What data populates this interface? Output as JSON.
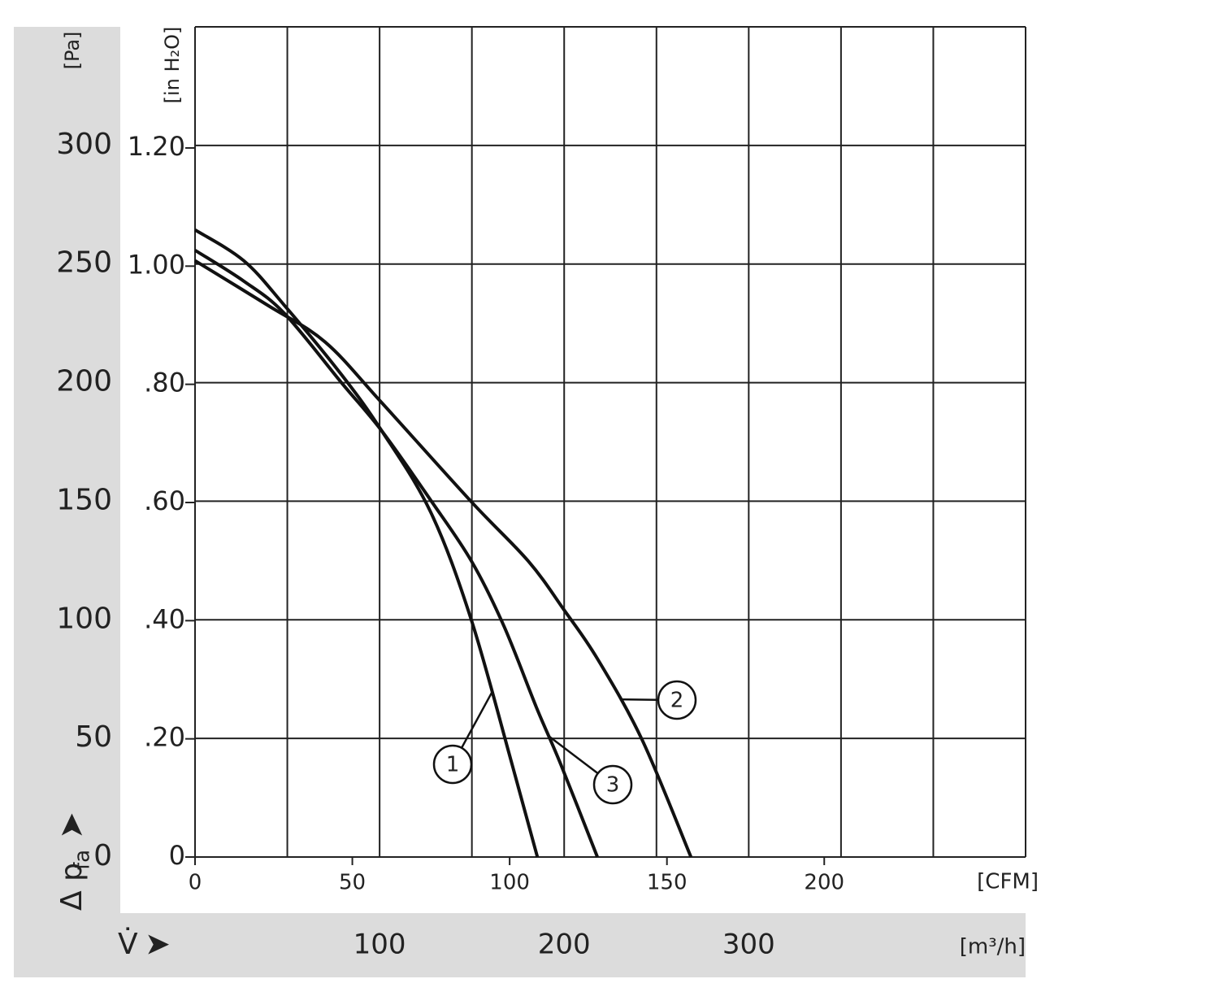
{
  "chart_data": {
    "type": "line",
    "xlim": [
      0,
      450
    ],
    "xticks": [
      100,
      200,
      300
    ],
    "xgrid": [
      0,
      50,
      100,
      150,
      200,
      250,
      300,
      350,
      400,
      450
    ],
    "xlabel": "V̇",
    "xunit": "[m³/h]",
    "x2lim": [
      0,
      264
    ],
    "x2ticks": [
      0,
      50,
      100,
      150,
      200
    ],
    "x2unit": "[CFM]",
    "ylim": [
      0,
      350
    ],
    "yticks": [
      0,
      50,
      100,
      150,
      200,
      250,
      300
    ],
    "yunit": "[Pa]",
    "ylabel": {
      "symbol": "Δ p",
      "subscript": "fa"
    },
    "y2lim": [
      0,
      1.405
    ],
    "y2ticks": [
      0,
      {
        "value": 0.2,
        "label": ".20"
      },
      {
        "value": 0.4,
        "label": ".40"
      },
      {
        "value": 0.6,
        "label": ".60"
      },
      {
        "value": 0.8,
        "label": ".80"
      },
      {
        "value": 1.0,
        "label": "1.00"
      },
      {
        "value": 1.2,
        "label": "1.20"
      }
    ],
    "y2unit": "[in H₂O]",
    "grid": true,
    "series": [
      {
        "name": "1",
        "color": "#111111",
        "x": [
          0,
          26.4,
          48.5,
          79.3,
          101.3,
          127.8,
          149.8,
          171.8,
          185.5
        ],
        "values": [
          264.4,
          251.4,
          232.5,
          203.4,
          179.5,
          145.2,
          99.7,
          39.0,
          0
        ]
      },
      {
        "name": "2",
        "color": "#111111",
        "x": [
          0,
          39.6,
          70.5,
          101.3,
          149.8,
          180.6,
          200,
          218,
          242.3,
          268.7
        ],
        "values": [
          251.4,
          232.5,
          217.1,
          191.4,
          149.7,
          124.7,
          104.1,
          83.6,
          49.3,
          0
        ]
      },
      {
        "name": "3",
        "color": "#111111",
        "x": [
          0,
          26.4,
          48.5,
          79.3,
          101.3,
          127.8,
          149.8,
          167.4,
          185,
          198.2,
          218
        ],
        "values": [
          255.8,
          242.8,
          229.1,
          200,
          179.5,
          150.3,
          124.7,
          97.3,
          63,
          39,
          0
        ]
      }
    ]
  }
}
